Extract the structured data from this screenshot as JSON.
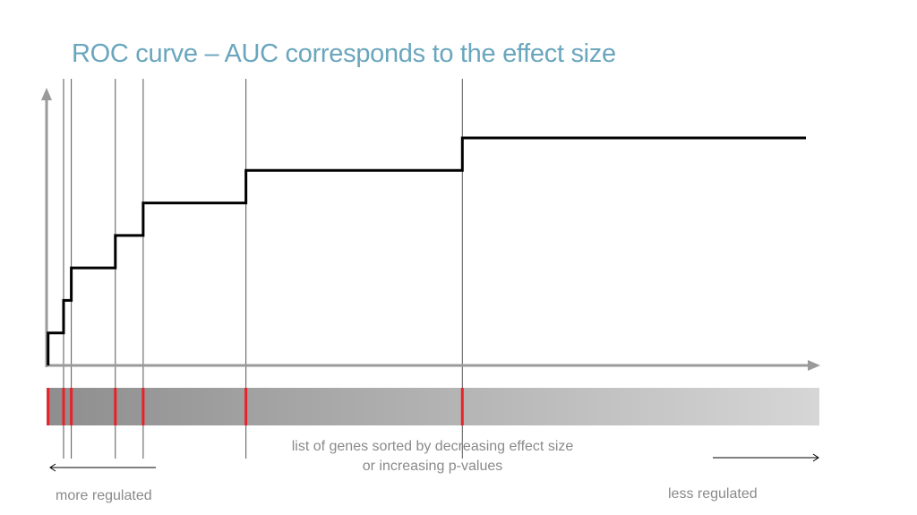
{
  "title": "ROC curve – AUC corresponds to the effect size",
  "caption": {
    "line1": "list of genes sorted by decreasing effect size",
    "line2": "or increasing p-values"
  },
  "labels": {
    "more": "more regulated",
    "less": "less regulated"
  },
  "colors": {
    "title": "#6aa6bd",
    "axis": "#9a9a9a",
    "curve": "#000000",
    "marker": "#e8222a",
    "guide": "#555555",
    "text": "#8a8a8a"
  },
  "diagram": {
    "gene_hits": [
      0.2,
      2.2,
      3.2,
      8.9,
      12.5,
      25.8,
      53.8
    ],
    "gene_count": 100,
    "step_count": 7
  }
}
